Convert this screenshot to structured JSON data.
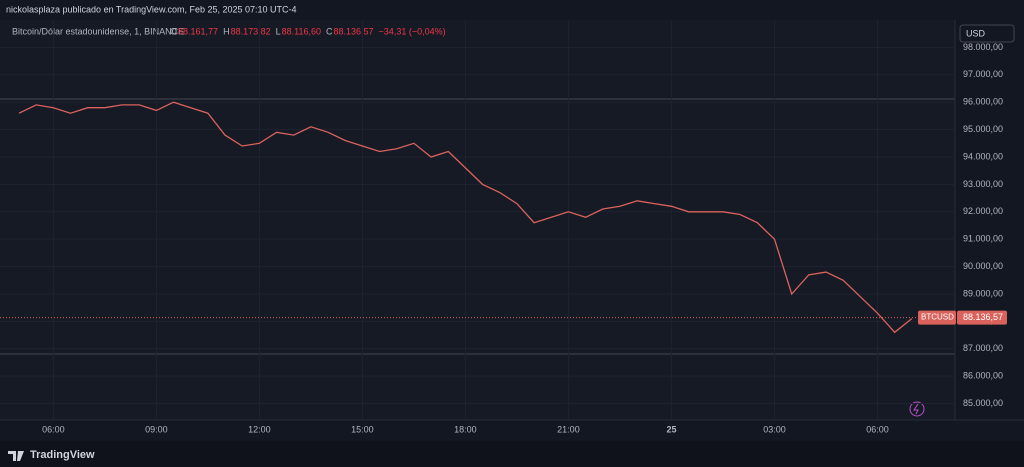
{
  "header": {
    "attribution": "nickolasplaza publicado en TradingView.com, Feb 25, 2025 07:10 UTC-4"
  },
  "legend": {
    "instrument": "Bitcoin/Dólar estadounidense, 1, BINANCE",
    "ohlc": [
      {
        "key": "O",
        "value": "88.161,77"
      },
      {
        "key": "H",
        "value": "88.173,82"
      },
      {
        "key": "L",
        "value": "88.116,60"
      },
      {
        "key": "C",
        "value": "88.136,57"
      }
    ],
    "change": "−34,31 (−0,04%)"
  },
  "currency_button": "USD",
  "footer": {
    "brand": "TradingView"
  },
  "chart_data": {
    "type": "line",
    "categories": [
      null,
      null,
      "06:00",
      null,
      null,
      null,
      null,
      null,
      "09:00",
      null,
      null,
      null,
      null,
      null,
      "12:00",
      null,
      null,
      null,
      null,
      null,
      "15:00",
      null,
      null,
      null,
      null,
      null,
      "18:00",
      null,
      null,
      null,
      null,
      null,
      "21:00",
      null,
      null,
      null,
      null,
      null,
      "25",
      null,
      null,
      null,
      null,
      null,
      "03:00",
      null,
      null,
      null,
      null,
      null,
      "06:00",
      null,
      null
    ],
    "series": [
      {
        "name": "BTCUSD",
        "color": "#d9635c",
        "values": [
          95600,
          95900,
          95800,
          95600,
          95800,
          95800,
          95900,
          95900,
          95700,
          96000,
          95800,
          95600,
          94800,
          94400,
          94500,
          94900,
          94800,
          95100,
          94900,
          94600,
          94400,
          94200,
          94300,
          94500,
          94000,
          94200,
          93600,
          93000,
          92700,
          92300,
          91600,
          91800,
          92000,
          91800,
          92100,
          92200,
          92400,
          92300,
          92200,
          92000,
          92000,
          92000,
          91900,
          91600,
          91000,
          89000,
          89700,
          89800,
          89500,
          88900,
          88300,
          87600,
          88100
        ]
      }
    ],
    "last_value": {
      "value": 88136.57,
      "label": "88.136,57"
    },
    "ylim": [
      84400,
      99000
    ],
    "yticks": [
      {
        "value": 85000,
        "label": "85.000,00"
      },
      {
        "value": 86000,
        "label": "86.000,00"
      },
      {
        "value": 87000,
        "label": "87.000,00"
      },
      {
        "value": 88000,
        "label": "88.000,00"
      },
      {
        "value": 89000,
        "label": "89.000,00"
      },
      {
        "value": 90000,
        "label": "90.000,00"
      },
      {
        "value": 91000,
        "label": "91.000,00"
      },
      {
        "value": 92000,
        "label": "92.000,00"
      },
      {
        "value": 93000,
        "label": "93.000,00"
      },
      {
        "value": 94000,
        "label": "94.000,00"
      },
      {
        "value": 95000,
        "label": "95.000,00"
      },
      {
        "value": 96000,
        "label": "96.000,00"
      },
      {
        "value": 97000,
        "label": "97.000,00"
      },
      {
        "value": 98000,
        "label": "98.000,00"
      }
    ],
    "grid": true
  }
}
